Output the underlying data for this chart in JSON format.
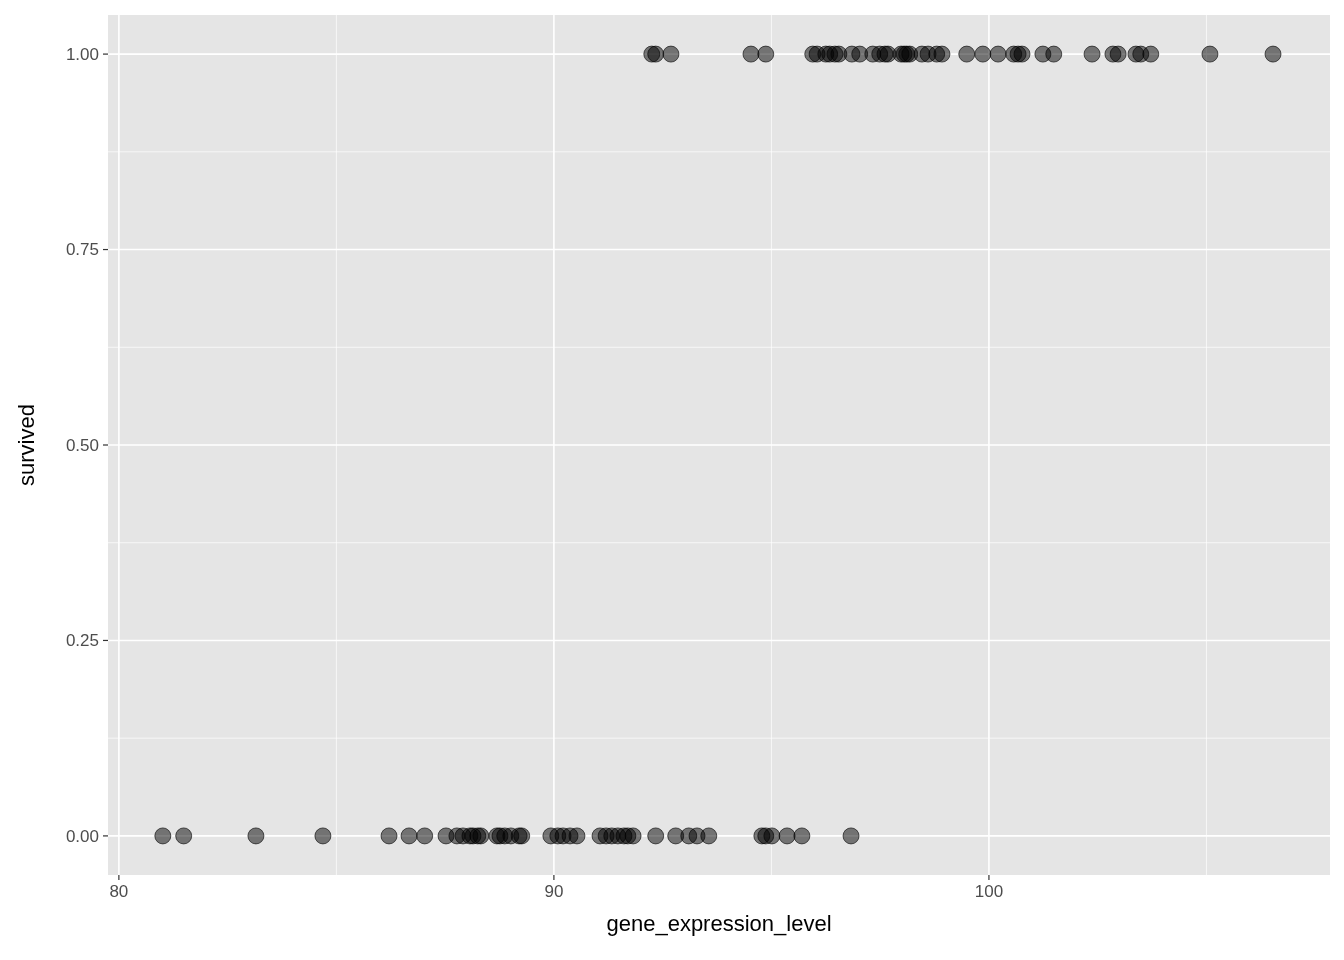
{
  "chart_data": {
    "type": "scatter",
    "xlabel": "gene_expression_level",
    "ylabel": "survived",
    "x": [
      81.01,
      81.49,
      83.15,
      84.69,
      86.21,
      86.67,
      87.03,
      87.52,
      87.77,
      87.91,
      88.07,
      88.14,
      88.25,
      88.32,
      88.69,
      88.76,
      88.87,
      89.01,
      89.2,
      89.26,
      89.93,
      90.09,
      90.21,
      90.37,
      90.53,
      91.06,
      91.2,
      91.33,
      91.47,
      91.61,
      91.7,
      91.82,
      92.34,
      92.8,
      93.1,
      93.29,
      93.56,
      94.78,
      94.87,
      95.01,
      95.36,
      95.7,
      96.83,
      92.25,
      92.34,
      92.69,
      94.53,
      94.87,
      95.95,
      96.05,
      96.25,
      96.34,
      96.46,
      96.55,
      96.85,
      97.03,
      97.33,
      97.49,
      97.61,
      97.68,
      97.98,
      98.05,
      98.11,
      98.18,
      98.46,
      98.6,
      98.8,
      98.92,
      99.49,
      99.86,
      100.21,
      100.57,
      100.67,
      100.76,
      101.24,
      101.49,
      102.37,
      102.85,
      102.97,
      103.38,
      103.49,
      103.72,
      105.08,
      106.53
    ],
    "values": [
      0,
      0,
      0,
      0,
      0,
      0,
      0,
      0,
      0,
      0,
      0,
      0,
      0,
      0,
      0,
      0,
      0,
      0,
      0,
      0,
      0,
      0,
      0,
      0,
      0,
      0,
      0,
      0,
      0,
      0,
      0,
      0,
      0,
      0,
      0,
      0,
      0,
      0,
      0,
      0,
      0,
      0,
      0,
      1,
      1,
      1,
      1,
      1,
      1,
      1,
      1,
      1,
      1,
      1,
      1,
      1,
      1,
      1,
      1,
      1,
      1,
      1,
      1,
      1,
      1,
      1,
      1,
      1,
      1,
      1,
      1,
      1,
      1,
      1,
      1,
      1,
      1,
      1,
      1,
      1,
      1,
      1,
      1,
      1
    ],
    "color": "#000000",
    "marker": "circle",
    "xlim": [
      79.75,
      107.84
    ],
    "ylim": [
      -0.05,
      1.05
    ],
    "xticks": [
      80,
      90,
      100
    ],
    "yticks": [
      {
        "value": 0,
        "label": "0.00"
      },
      {
        "value": 0.25,
        "label": "0.25"
      },
      {
        "value": 0.5,
        "label": "0.50"
      },
      {
        "value": 0.75,
        "label": "0.75"
      },
      {
        "value": 1,
        "label": "1.00"
      }
    ],
    "grid": true
  }
}
